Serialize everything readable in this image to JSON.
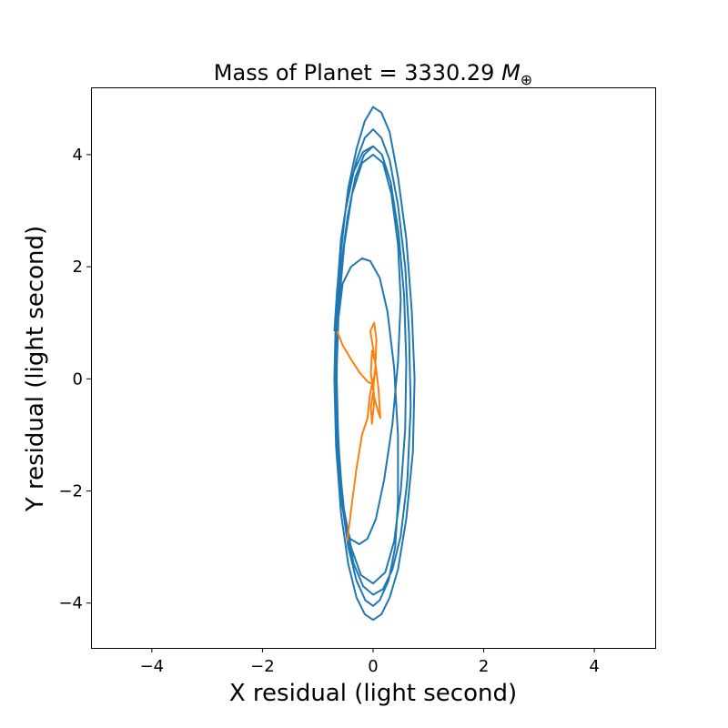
{
  "chart_data": {
    "type": "line",
    "title": "Mass of Planet = 3330.29 ",
    "title_unit": "M",
    "title_sub": "⊕",
    "xlabel": "X residual (light second)",
    "ylabel": "Y residual (light second)",
    "xlim": [
      -5.1,
      5.1
    ],
    "ylim": [
      -4.8,
      5.2
    ],
    "xticks": [
      -4,
      -2,
      0,
      2,
      4
    ],
    "yticks": [
      -4,
      -2,
      0,
      2,
      4
    ],
    "xtick_labels": [
      "−4",
      "−2",
      "0",
      "2",
      "4"
    ],
    "ytick_labels": [
      "−4",
      "−2",
      "0",
      "2",
      "4"
    ],
    "grid": false,
    "series": [
      {
        "color": "#1f77b4",
        "points": [
          [
            -0.7,
            0.85
          ],
          [
            -0.65,
            1.6
          ],
          [
            -0.55,
            2.6
          ],
          [
            -0.45,
            3.4
          ],
          [
            -0.3,
            4.1
          ],
          [
            -0.15,
            4.6
          ],
          [
            0.0,
            4.85
          ],
          [
            0.15,
            4.75
          ],
          [
            0.3,
            4.4
          ],
          [
            0.45,
            3.6
          ],
          [
            0.6,
            2.5
          ],
          [
            0.7,
            1.2
          ],
          [
            0.75,
            0.0
          ],
          [
            0.72,
            -1.3
          ],
          [
            0.6,
            -2.5
          ],
          [
            0.45,
            -3.4
          ],
          [
            0.3,
            -3.9
          ],
          [
            0.15,
            -4.2
          ],
          [
            0.0,
            -4.3
          ],
          [
            -0.15,
            -4.2
          ],
          [
            -0.3,
            -3.9
          ],
          [
            -0.45,
            -3.3
          ],
          [
            -0.58,
            -2.4
          ],
          [
            -0.67,
            -1.2
          ],
          [
            -0.7,
            0.0
          ],
          [
            -0.67,
            1.3
          ],
          [
            -0.58,
            2.5
          ],
          [
            -0.45,
            3.3
          ],
          [
            -0.3,
            3.9
          ],
          [
            -0.15,
            4.3
          ],
          [
            0.0,
            4.45
          ],
          [
            0.15,
            4.3
          ],
          [
            0.3,
            3.9
          ],
          [
            0.45,
            3.1
          ],
          [
            0.58,
            2.0
          ],
          [
            0.65,
            0.8
          ],
          [
            0.68,
            -0.5
          ],
          [
            0.62,
            -1.8
          ],
          [
            0.5,
            -2.8
          ],
          [
            0.35,
            -3.4
          ],
          [
            0.18,
            -3.75
          ],
          [
            0.0,
            -3.85
          ],
          [
            -0.18,
            -3.7
          ],
          [
            -0.35,
            -3.3
          ],
          [
            -0.5,
            -2.6
          ],
          [
            -0.6,
            -1.6
          ],
          [
            -0.66,
            -0.4
          ],
          [
            -0.65,
            0.9
          ],
          [
            -0.58,
            2.0
          ],
          [
            -0.46,
            2.9
          ],
          [
            -0.32,
            3.6
          ],
          [
            -0.16,
            4.0
          ],
          [
            0.0,
            4.15
          ],
          [
            0.16,
            4.0
          ],
          [
            0.32,
            3.5
          ],
          [
            0.46,
            2.6
          ],
          [
            0.56,
            1.5
          ],
          [
            0.6,
            0.3
          ],
          [
            0.58,
            -0.9
          ],
          [
            0.5,
            -2.0
          ],
          [
            0.38,
            -2.9
          ],
          [
            0.22,
            -3.45
          ],
          [
            0.0,
            -3.65
          ],
          [
            -0.22,
            -3.5
          ],
          [
            -0.4,
            -3.0
          ],
          [
            -0.55,
            -2.2
          ],
          [
            -0.63,
            -1.1
          ],
          [
            -0.66,
            0.1
          ],
          [
            -0.62,
            1.3
          ],
          [
            -0.52,
            2.4
          ],
          [
            -0.38,
            3.3
          ],
          [
            -0.2,
            3.85
          ],
          [
            0.0,
            4.0
          ],
          [
            0.18,
            3.85
          ],
          [
            0.33,
            3.3
          ],
          [
            0.45,
            2.4
          ],
          [
            0.5,
            1.4
          ],
          [
            0.45,
            0.3
          ],
          [
            0.35,
            -0.8
          ],
          [
            0.2,
            -1.8
          ],
          [
            0.05,
            -2.5
          ],
          [
            -0.1,
            -2.85
          ],
          [
            -0.25,
            -2.95
          ],
          [
            -0.42,
            -2.85
          ],
          [
            -0.55,
            -2.3
          ],
          [
            -0.64,
            -1.4
          ],
          [
            -0.68,
            -0.3
          ],
          [
            -0.65,
            0.9
          ],
          [
            -0.55,
            1.7
          ],
          [
            -0.4,
            2.0
          ],
          [
            -0.2,
            2.15
          ],
          [
            -0.05,
            2.1
          ],
          [
            0.12,
            1.8
          ],
          [
            0.26,
            1.2
          ],
          [
            0.38,
            0.2
          ],
          [
            0.45,
            -1.0
          ],
          [
            0.45,
            -2.2
          ],
          [
            0.4,
            -3.0
          ],
          [
            0.28,
            -3.6
          ],
          [
            0.12,
            -3.95
          ],
          [
            0.0,
            -4.05
          ],
          [
            -0.14,
            -3.95
          ],
          [
            -0.3,
            -3.6
          ],
          [
            -0.45,
            -3.0
          ],
          [
            -0.58,
            -2.1
          ],
          [
            -0.66,
            -0.9
          ],
          [
            -0.68,
            0.5
          ],
          [
            -0.62,
            1.9
          ],
          [
            -0.5,
            3.0
          ],
          [
            -0.35,
            3.7
          ],
          [
            -0.18,
            4.05
          ],
          [
            0.0,
            4.15
          ]
        ]
      },
      {
        "color": "#ff7f0e",
        "points": [
          [
            -0.65,
            0.85
          ],
          [
            -0.55,
            0.6
          ],
          [
            -0.4,
            0.35
          ],
          [
            -0.25,
            0.12
          ],
          [
            -0.1,
            -0.05
          ],
          [
            0.0,
            -0.1
          ],
          [
            0.05,
            0.2
          ],
          [
            0.0,
            0.55
          ],
          [
            -0.05,
            0.85
          ],
          [
            0.02,
            1.0
          ],
          [
            0.06,
            0.7
          ],
          [
            0.04,
            0.2
          ],
          [
            0.0,
            -0.2
          ],
          [
            -0.04,
            0.1
          ],
          [
            -0.02,
            0.5
          ],
          [
            0.04,
            0.3
          ],
          [
            0.1,
            -0.2
          ],
          [
            0.13,
            -0.7
          ],
          [
            0.08,
            -0.55
          ],
          [
            0.0,
            -0.25
          ],
          [
            -0.04,
            -0.5
          ],
          [
            -0.02,
            -0.8
          ],
          [
            0.02,
            -0.4
          ],
          [
            0.0,
            0.0
          ],
          [
            -0.06,
            -0.3
          ],
          [
            -0.1,
            -0.7
          ],
          [
            -0.2,
            -1.0
          ],
          [
            -0.3,
            -1.6
          ],
          [
            -0.38,
            -2.2
          ],
          [
            -0.43,
            -2.6
          ],
          [
            -0.47,
            -2.9
          ]
        ]
      }
    ]
  }
}
